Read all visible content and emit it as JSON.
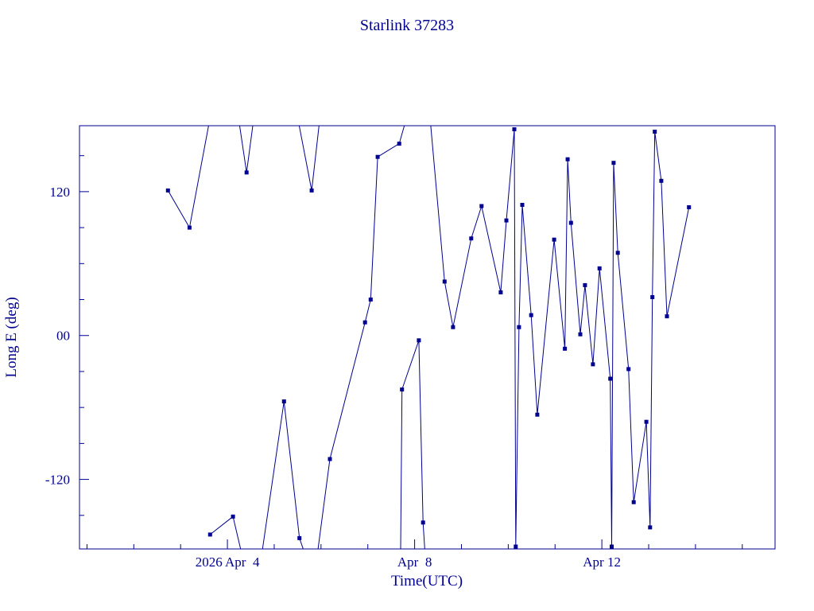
{
  "page": {
    "background": "#ffffff"
  },
  "chart_data": {
    "type": "line",
    "title": "Starlink 37283",
    "xlabel": "Time(UTC)",
    "ylabel": "Long E (deg)",
    "color": "#000090",
    "background": "#ffffff",
    "marker": "square",
    "grid": false,
    "legend": null,
    "x_unit": "day of April 2026 (UTC), read from axis labels",
    "xlim": [
      0.84,
      15.7
    ],
    "ylim": [
      -178,
      175
    ],
    "x_major_ticks": [
      {
        "day": 4,
        "label": "2026 Apr  4"
      },
      {
        "day": 8,
        "label": "Apr  8"
      },
      {
        "day": 12,
        "label": "Apr 12"
      }
    ],
    "x_minor_tick_days": [
      1,
      2,
      3,
      5,
      6,
      7,
      9,
      10,
      11,
      13,
      14,
      15
    ],
    "y_major_ticks": [
      {
        "value": -120,
        "label": "-120"
      },
      {
        "value": 0,
        "label": "00"
      },
      {
        "value": 120,
        "label": "120"
      }
    ],
    "y_minor_tick_values": [
      -150,
      -90,
      -60,
      -30,
      30,
      60,
      90,
      150
    ],
    "series": [
      {
        "name": "Long E",
        "segments": [
          [
            [
              2.73,
              121
            ],
            [
              3.19,
              90
            ],
            [
              3.65,
              186
            ]
          ],
          [
            [
              3.63,
              -166
            ],
            [
              4.12,
              -151
            ],
            [
              4.33,
              -186
            ]
          ],
          [
            [
              4.22,
              186
            ],
            [
              4.41,
              136
            ],
            [
              4.58,
              186
            ]
          ],
          [
            [
              4.72,
              -186
            ],
            [
              5.21,
              -55
            ],
            [
              5.54,
              -169
            ],
            [
              5.69,
              -186
            ]
          ],
          [
            [
              5.48,
              186
            ],
            [
              5.8,
              121
            ],
            [
              5.99,
              186
            ]
          ],
          [
            [
              5.91,
              -186
            ],
            [
              6.19,
              -103
            ],
            [
              6.94,
              11
            ],
            [
              7.06,
              30
            ],
            [
              7.21,
              149
            ],
            [
              7.67,
              160
            ],
            [
              7.86,
              186
            ]
          ],
          [
            [
              7.7,
              -186
            ],
            [
              7.73,
              -45
            ],
            [
              8.09,
              -4
            ],
            [
              8.18,
              -156
            ],
            [
              8.23,
              -186
            ]
          ],
          [
            [
              8.32,
              186
            ],
            [
              8.64,
              45
            ],
            [
              8.82,
              7
            ],
            [
              9.21,
              81
            ],
            [
              9.43,
              108
            ],
            [
              9.84,
              36
            ],
            [
              9.96,
              96
            ],
            [
              10.13,
              172
            ],
            [
              10.16,
              -176
            ],
            [
              10.23,
              7
            ],
            [
              10.3,
              109
            ],
            [
              10.49,
              17
            ],
            [
              10.62,
              -66
            ],
            [
              10.98,
              80
            ],
            [
              11.21,
              -11
            ],
            [
              11.27,
              147
            ],
            [
              11.34,
              94
            ],
            [
              11.54,
              1
            ],
            [
              11.64,
              42
            ],
            [
              11.81,
              -24
            ],
            [
              11.95,
              56
            ],
            [
              12.18,
              -36
            ],
            [
              12.21,
              -176
            ],
            [
              12.25,
              144
            ],
            [
              12.34,
              69
            ],
            [
              12.57,
              -28
            ],
            [
              12.68,
              -139
            ],
            [
              12.95,
              -72
            ],
            [
              13.03,
              -160
            ],
            [
              13.08,
              32
            ],
            [
              13.13,
              170
            ],
            [
              13.27,
              129
            ],
            [
              13.39,
              16
            ],
            [
              13.86,
              107
            ]
          ]
        ]
      }
    ]
  }
}
